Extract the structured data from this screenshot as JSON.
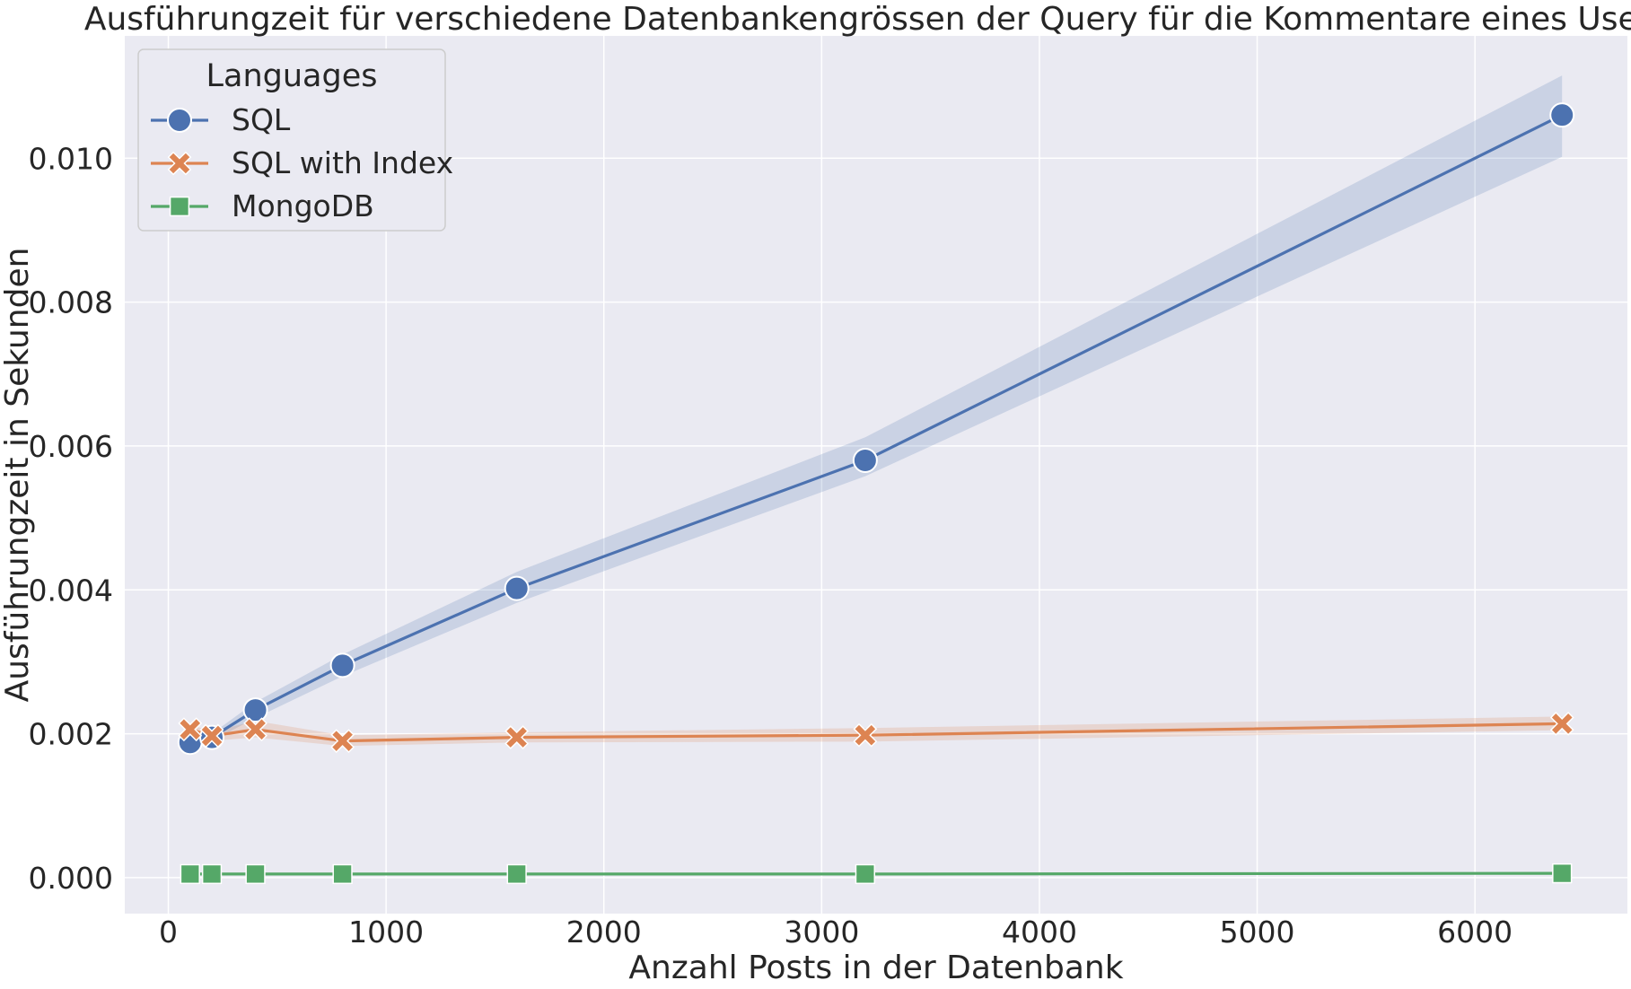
{
  "chart_data": {
    "type": "line",
    "title": "Ausführungzeit für verschiedene Datenbankengrössen der Query für die Kommentare eines Users",
    "xlabel": "Anzahl Posts in der Datenbank",
    "ylabel": "Ausführungzeit in Sekunden",
    "xlim": [
      -200,
      6700
    ],
    "ylim": [
      -0.0005,
      0.0117
    ],
    "x_ticks": [
      0,
      1000,
      2000,
      3000,
      4000,
      5000,
      6000
    ],
    "y_ticks": [
      0.0,
      0.002,
      0.004,
      0.006,
      0.008,
      0.01
    ],
    "x_tick_labels": [
      "0",
      "1000",
      "2000",
      "3000",
      "4000",
      "5000",
      "6000"
    ],
    "y_tick_labels": [
      "0.000",
      "0.002",
      "0.004",
      "0.006",
      "0.008",
      "0.010"
    ],
    "grid": true,
    "background": "#eaeaf2",
    "legend": {
      "title": "Languages",
      "placement": "upper-left"
    },
    "x": [
      100,
      200,
      400,
      800,
      1600,
      3200,
      6400
    ],
    "series": [
      {
        "name": "SQL",
        "marker": "circle",
        "color": "#4c72b0",
        "values": [
          0.00188,
          0.00195,
          0.00233,
          0.00295,
          0.00402,
          0.0058,
          0.0106
        ],
        "ci_lower": [
          0.00185,
          0.0019,
          0.00222,
          0.0028,
          0.00382,
          0.00558,
          0.01002
        ],
        "ci_upper": [
          0.00192,
          0.002,
          0.00244,
          0.0031,
          0.00425,
          0.00612,
          0.01115
        ]
      },
      {
        "name": "SQL with Index",
        "marker": "x",
        "color": "#dd8452",
        "values": [
          0.00206,
          0.00197,
          0.00206,
          0.0019,
          0.00195,
          0.00198,
          0.00214
        ],
        "ci_lower": [
          0.00199,
          0.0019,
          0.00195,
          0.00183,
          0.00188,
          0.00189,
          0.00205
        ],
        "ci_upper": [
          0.00213,
          0.00203,
          0.00218,
          0.00198,
          0.00202,
          0.00208,
          0.00224
        ]
      },
      {
        "name": "MongoDB",
        "marker": "square",
        "color": "#55a868",
        "values": [
          5e-05,
          5e-05,
          5e-05,
          5e-05,
          5e-05,
          5e-05,
          6e-05
        ],
        "ci_lower": [
          4e-05,
          4e-05,
          4e-05,
          4e-05,
          4e-05,
          4e-05,
          5e-05
        ],
        "ci_upper": [
          6e-05,
          6e-05,
          6e-05,
          6e-05,
          6e-05,
          6e-05,
          7e-05
        ]
      }
    ]
  }
}
